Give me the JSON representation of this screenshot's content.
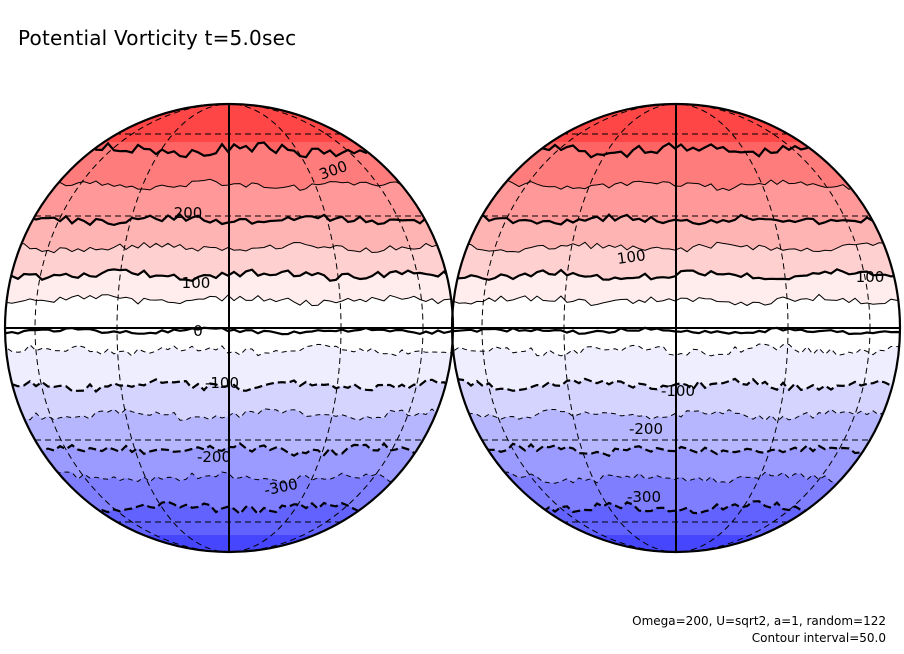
{
  "title": "Potential Vorticity t=5.0sec",
  "footer": {
    "params": "Omega=200, U=sqrt2, a=1, random=122",
    "interval": "Contour interval=50.0"
  },
  "chart_data": {
    "type": "heatmap",
    "title": "Potential Vorticity t=5.0sec",
    "projection": "orthographic, two hemispheres",
    "contour_interval": 50.0,
    "levels": [
      -350,
      -300,
      -250,
      -200,
      -150,
      -100,
      -50,
      0,
      50,
      100,
      150,
      200,
      250,
      300,
      350
    ],
    "band_colors": {
      "350": "#ff4646",
      "300": "#ff6464",
      "250": "#ff7c7c",
      "200": "#ff9898",
      "150": "#ffb4b4",
      "100": "#ffd0d0",
      "50": "#ffecec",
      "0": "#ffffff",
      "-50": "#eeeeff",
      "-100": "#d4d4ff",
      "-150": "#b6b6ff",
      "-200": "#9a9aff",
      "-250": "#7e7eff",
      "-300": "#6262ff",
      "-350": "#4646ff"
    },
    "globes": [
      {
        "name": "left",
        "contour_labels": [
          "300",
          "200",
          "100",
          "0",
          "-100",
          "-200",
          "-300"
        ]
      },
      {
        "name": "right",
        "contour_labels": [
          "100",
          "100",
          "-100",
          "-200",
          "-300"
        ]
      }
    ],
    "negative_contours_style": "dashed",
    "positive_contours_style": "solid",
    "params": {
      "Omega": 200,
      "U": "sqrt2",
      "a": 1,
      "random": 122
    }
  }
}
